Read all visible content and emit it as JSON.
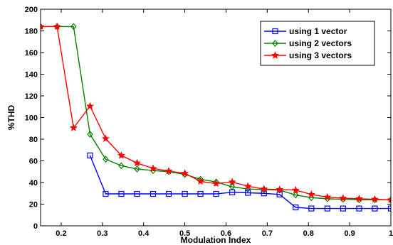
{
  "chart_data": {
    "type": "line",
    "title": "",
    "xlabel": "Modulation Index",
    "ylabel": "%THD",
    "xlim": [
      0.15,
      1.0
    ],
    "ylim": [
      0,
      200
    ],
    "xticks": [
      0.2,
      0.3,
      0.4,
      0.5,
      0.6,
      0.7,
      0.8,
      0.9,
      1
    ],
    "xtick_labels": [
      "0.2",
      "0.3",
      "0.4",
      "0.5",
      "0.6",
      "0.7",
      "0.8",
      "0.9",
      "1"
    ],
    "yticks": [
      0,
      20,
      40,
      60,
      80,
      100,
      120,
      140,
      160,
      180,
      200
    ],
    "ytick_labels": [
      "0",
      "20",
      "40",
      "60",
      "80",
      "100",
      "120",
      "140",
      "160",
      "180",
      "200"
    ],
    "grid": false,
    "legend_position": "top-right",
    "series": [
      {
        "name": "using 1 vector",
        "color": "#0000ff",
        "marker": "square",
        "x": [
          0.27,
          0.308,
          0.346,
          0.384,
          0.423,
          0.461,
          0.5,
          0.538,
          0.576,
          0.615,
          0.653,
          0.692,
          0.73,
          0.769,
          0.807,
          0.846,
          0.884,
          0.923,
          0.961,
          1.0
        ],
        "y": [
          65,
          29.5,
          29.5,
          29.5,
          29.5,
          29.5,
          29.5,
          29.5,
          29.5,
          31,
          30.5,
          30,
          29,
          17,
          16,
          16,
          16,
          16,
          16,
          16
        ]
      },
      {
        "name": "using 2 vectors",
        "color": "#008000",
        "marker": "diamond",
        "x": [
          0.15,
          0.19,
          0.23,
          0.27,
          0.308,
          0.346,
          0.384,
          0.423,
          0.461,
          0.5,
          0.538,
          0.576,
          0.615,
          0.653,
          0.692,
          0.73,
          0.769,
          0.807,
          0.846,
          0.884,
          0.923,
          0.961,
          1.0
        ],
        "y": [
          184,
          184,
          184,
          84.5,
          61.5,
          55.5,
          52.5,
          51,
          50,
          47.5,
          43,
          40.5,
          36,
          34,
          33.5,
          33,
          28.5,
          26,
          25,
          24.5,
          24,
          24,
          24
        ]
      },
      {
        "name": "using 3 vectors",
        "color": "#ff0000",
        "marker": "star",
        "x": [
          0.15,
          0.19,
          0.23,
          0.27,
          0.308,
          0.346,
          0.384,
          0.423,
          0.461,
          0.5,
          0.538,
          0.576,
          0.615,
          0.653,
          0.692,
          0.73,
          0.769,
          0.807,
          0.846,
          0.884,
          0.923,
          0.961,
          1.0
        ],
        "y": [
          184,
          184,
          90.5,
          110.5,
          80.5,
          65,
          58,
          53,
          50.5,
          48.5,
          41,
          39,
          40.5,
          36.5,
          34,
          33.5,
          33,
          29,
          26.5,
          25.5,
          25,
          24.5,
          24
        ]
      }
    ]
  }
}
